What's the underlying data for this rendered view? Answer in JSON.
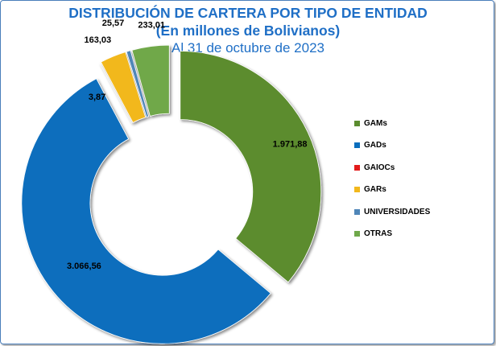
{
  "title": "DISTRIBUCIÓN DE CARTERA POR TIPO DE ENTIDAD",
  "subtitle": "(En millones de Bolivianos)",
  "date_line": "Al 31 de octubre de 2023",
  "chart_data": {
    "type": "pie",
    "variant": "exploded-doughnut",
    "title": "DISTRIBUCIÓN DE CARTERA POR TIPO DE ENTIDAD",
    "subtitle": "(En millones de Bolivianos)",
    "date": "Al 31 de octubre de 2023",
    "legend_position": "right",
    "slices": [
      {
        "name": "GAMs",
        "value": 1971.88,
        "label": "1.971,88",
        "color": "#5b8c2f"
      },
      {
        "name": "GADs",
        "value": 3066.56,
        "label": "3.066,56",
        "color": "#0a6ebd"
      },
      {
        "name": "GAIOCs",
        "value": 3.87,
        "label": "3,87",
        "color": "#e31b1b"
      },
      {
        "name": "GARs",
        "value": 163.03,
        "label": "163,03",
        "color": "#f2b81c"
      },
      {
        "name": "UNIVERSIDADES",
        "value": 25.57,
        "label": "25,57",
        "color": "#4f86b8"
      },
      {
        "name": "OTRAS",
        "value": 233.01,
        "label": "233,01",
        "color": "#6fa84a"
      }
    ]
  }
}
